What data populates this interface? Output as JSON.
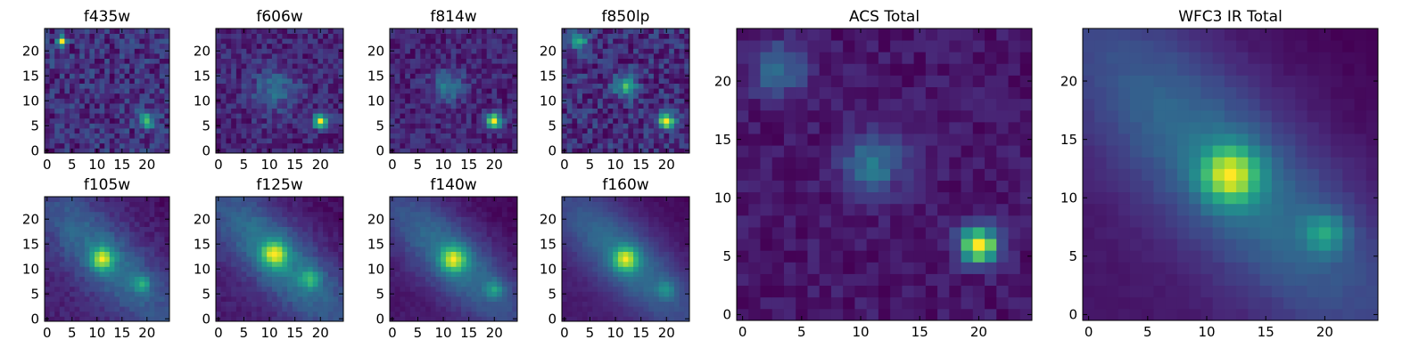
{
  "figure": {
    "description_colormap": "viridis"
  },
  "colors": {
    "cmap": [
      "#440154",
      "#482878",
      "#3e4989",
      "#31688e",
      "#26828e",
      "#1f9e89",
      "#35b779",
      "#6ece58",
      "#b5de2b",
      "#fde725"
    ]
  },
  "chart_data": [
    {
      "type": "heatmap",
      "title": "f435w",
      "xlim": [
        -0.5,
        24.5
      ],
      "ylim": [
        -0.5,
        24.5
      ],
      "xticks": [
        0,
        5,
        10,
        15,
        20
      ],
      "yticks": [
        0,
        5,
        10,
        15,
        20
      ],
      "grid": false,
      "features": [
        {
          "x": 3,
          "y": 22,
          "peak": 0.95,
          "sigma": 0.6
        },
        {
          "x": 20,
          "y": 6,
          "peak": 0.55,
          "sigma": 1.2
        }
      ],
      "background": 0.45,
      "noise": 0.28
    },
    {
      "type": "heatmap",
      "title": "f606w",
      "xlim": [
        -0.5,
        24.5
      ],
      "ylim": [
        -0.5,
        24.5
      ],
      "xticks": [
        0,
        5,
        10,
        15,
        20
      ],
      "yticks": [
        0,
        5,
        10,
        15,
        20
      ],
      "grid": false,
      "features": [
        {
          "x": 20,
          "y": 6,
          "peak": 0.85,
          "sigma": 1.0
        },
        {
          "x": 11,
          "y": 12,
          "peak": 0.25,
          "sigma": 3.0
        }
      ],
      "background": 0.35,
      "noise": 0.22
    },
    {
      "type": "heatmap",
      "title": "f814w",
      "xlim": [
        -0.5,
        24.5
      ],
      "ylim": [
        -0.5,
        24.5
      ],
      "xticks": [
        0,
        5,
        10,
        15,
        20
      ],
      "yticks": [
        0,
        5,
        10,
        15,
        20
      ],
      "grid": false,
      "features": [
        {
          "x": 20,
          "y": 6,
          "peak": 0.95,
          "sigma": 1.1
        },
        {
          "x": 11,
          "y": 13,
          "peak": 0.35,
          "sigma": 2.2
        }
      ],
      "background": 0.25,
      "noise": 0.24
    },
    {
      "type": "heatmap",
      "title": "f850lp",
      "xlim": [
        -0.5,
        24.5
      ],
      "ylim": [
        -0.5,
        24.5
      ],
      "xticks": [
        0,
        5,
        10,
        15,
        20
      ],
      "yticks": [
        0,
        5,
        10,
        15,
        20
      ],
      "grid": false,
      "features": [
        {
          "x": 20,
          "y": 6,
          "peak": 0.75,
          "sigma": 1.0
        },
        {
          "x": 12,
          "y": 13,
          "peak": 0.45,
          "sigma": 1.4
        },
        {
          "x": 3,
          "y": 22,
          "peak": 0.3,
          "sigma": 1.5
        }
      ],
      "background": 0.28,
      "noise": 0.22
    },
    {
      "type": "heatmap",
      "title": "f105w",
      "xlim": [
        -0.5,
        24.5
      ],
      "ylim": [
        -0.5,
        24.5
      ],
      "xticks": [
        0,
        5,
        10,
        15,
        20
      ],
      "yticks": [
        0,
        5,
        10,
        15,
        20
      ],
      "grid": false,
      "features": [
        {
          "x": 11,
          "y": 12,
          "peak": 0.85,
          "sigma": 1.6
        },
        {
          "x": 19,
          "y": 7,
          "peak": 0.45,
          "sigma": 1.2
        }
      ],
      "background": 0.1,
      "diag": 0.4,
      "noise": 0.12
    },
    {
      "type": "heatmap",
      "title": "f125w",
      "xlim": [
        -0.5,
        24.5
      ],
      "ylim": [
        -0.5,
        24.5
      ],
      "xticks": [
        0,
        5,
        10,
        15,
        20
      ],
      "yticks": [
        0,
        5,
        10,
        15,
        20
      ],
      "grid": false,
      "features": [
        {
          "x": 11,
          "y": 13,
          "peak": 0.75,
          "sigma": 1.8
        },
        {
          "x": 18,
          "y": 8,
          "peak": 0.45,
          "sigma": 1.3
        }
      ],
      "background": 0.12,
      "diag": 0.45,
      "noise": 0.1
    },
    {
      "type": "heatmap",
      "title": "f140w",
      "xlim": [
        -0.5,
        24.5
      ],
      "ylim": [
        -0.5,
        24.5
      ],
      "xticks": [
        0,
        5,
        10,
        15,
        20
      ],
      "yticks": [
        0,
        5,
        10,
        15,
        20
      ],
      "grid": false,
      "features": [
        {
          "x": 12,
          "y": 12,
          "peak": 0.85,
          "sigma": 1.8
        },
        {
          "x": 20,
          "y": 6,
          "peak": 0.4,
          "sigma": 1.2
        }
      ],
      "background": 0.08,
      "diag": 0.45,
      "noise": 0.08
    },
    {
      "type": "heatmap",
      "title": "f160w",
      "xlim": [
        -0.5,
        24.5
      ],
      "ylim": [
        -0.5,
        24.5
      ],
      "xticks": [
        0,
        5,
        10,
        15,
        20
      ],
      "yticks": [
        0,
        5,
        10,
        15,
        20
      ],
      "grid": false,
      "features": [
        {
          "x": 12,
          "y": 12,
          "peak": 0.9,
          "sigma": 1.7
        },
        {
          "x": 20,
          "y": 6,
          "peak": 0.35,
          "sigma": 1.2
        }
      ],
      "background": 0.05,
      "diag": 0.45,
      "noise": 0.06
    },
    {
      "type": "heatmap",
      "title": "ACS Total",
      "xlim": [
        -0.5,
        24.5
      ],
      "ylim": [
        -0.5,
        24.5
      ],
      "xticks": [
        0,
        5,
        10,
        15,
        20
      ],
      "yticks": [
        0,
        5,
        10,
        15,
        20
      ],
      "grid": false,
      "features": [
        {
          "x": 20,
          "y": 6,
          "peak": 0.95,
          "sigma": 1.1
        },
        {
          "x": 11,
          "y": 13,
          "peak": 0.35,
          "sigma": 1.8
        },
        {
          "x": 3,
          "y": 21,
          "peak": 0.3,
          "sigma": 1.6
        }
      ],
      "background": 0.3,
      "noise": 0.12
    },
    {
      "type": "heatmap",
      "title": "WFC3 IR Total",
      "xlim": [
        -0.5,
        24.5
      ],
      "ylim": [
        -0.5,
        24.5
      ],
      "xticks": [
        0,
        5,
        10,
        15,
        20
      ],
      "yticks": [
        0,
        5,
        10,
        15,
        20
      ],
      "grid": false,
      "features": [
        {
          "x": 12,
          "y": 12,
          "peak": 0.9,
          "sigma": 1.7
        },
        {
          "x": 20,
          "y": 7,
          "peak": 0.45,
          "sigma": 1.2
        }
      ],
      "background": 0.06,
      "diag": 0.45,
      "noise": 0.04
    }
  ]
}
